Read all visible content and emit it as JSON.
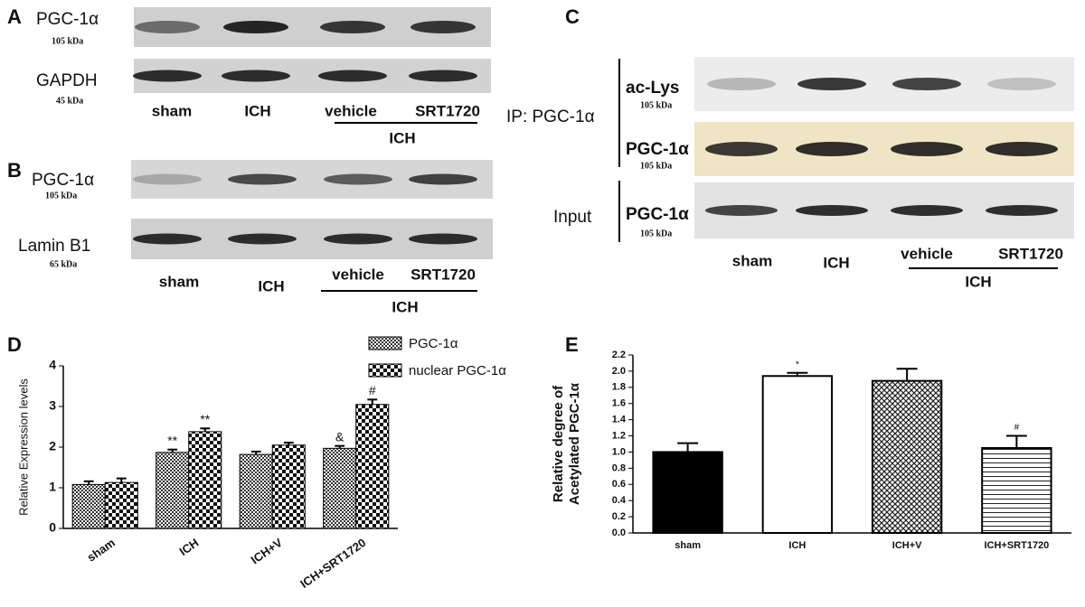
{
  "panel_a": {
    "label": "A",
    "rows": [
      {
        "protein": "PGC-1α",
        "size": "105 kDa"
      },
      {
        "protein": "GAPDH",
        "size": "45 kDa"
      }
    ],
    "lanes": [
      "sham",
      "ICH",
      "vehicle",
      "SRT1720"
    ],
    "group": "ICH"
  },
  "panel_b": {
    "label": "B",
    "rows": [
      {
        "protein": "PGC-1α",
        "size": "105 kDa"
      },
      {
        "protein": "Lamin B1",
        "size": "65 kDa"
      }
    ],
    "lanes": [
      "sham",
      "ICH",
      "vehicle",
      "SRT1720"
    ],
    "group": "ICH"
  },
  "panel_c": {
    "label": "C",
    "ip_label": "IP: PGC-1α",
    "input_label": "Input",
    "rows": [
      {
        "protein": "ac-Lys",
        "size": "105 kDa"
      },
      {
        "protein": "PGC-1α",
        "size": "105 kDa"
      },
      {
        "protein": "PGC-1α",
        "size": "105 kDa"
      }
    ],
    "lanes": [
      "sham",
      "ICH",
      "vehicle",
      "SRT1720"
    ],
    "group": "ICH"
  },
  "chart_data": [
    {
      "type": "bar",
      "panel": "D",
      "ylabel": "Relative Expression levels",
      "categories": [
        "sham",
        "ICH",
        "ICH+V",
        "ICH+SRT1720"
      ],
      "series": [
        {
          "name": "PGC-1α",
          "color": "#333333",
          "pattern": "checker-fine",
          "values": [
            1.08,
            1.87,
            1.82,
            1.97
          ],
          "errors": [
            0.08,
            0.07,
            0.07,
            0.06
          ],
          "significance": [
            null,
            "**",
            null,
            "&"
          ]
        },
        {
          "name": "nuclear PGC-1α",
          "color": "#111111",
          "pattern": "checker-coarse",
          "values": [
            1.13,
            2.38,
            2.05,
            3.05
          ],
          "errors": [
            0.1,
            0.08,
            0.06,
            0.12
          ],
          "significance": [
            null,
            "**",
            null,
            "#"
          ]
        }
      ],
      "ylim": [
        0,
        4
      ],
      "yticks": [
        0,
        1,
        2,
        3,
        4
      ]
    },
    {
      "type": "bar",
      "panel": "E",
      "ylabel": [
        "Relative degree of",
        "Acetylated PGC-1α"
      ],
      "categories": [
        "sham",
        "ICH",
        "ICH+V",
        "ICH+SRT1720"
      ],
      "series": [
        {
          "colors": [
            "#000000",
            "#ffffff",
            "#222222",
            "#222222"
          ],
          "patterns": [
            "solid",
            "solid",
            "crosshatch",
            "hlines"
          ],
          "values": [
            1.0,
            1.94,
            1.88,
            1.05
          ],
          "errors": [
            0.11,
            0.04,
            0.15,
            0.15
          ],
          "significance": [
            null,
            "*",
            null,
            "#"
          ]
        }
      ],
      "ylim": [
        0,
        2.2
      ],
      "yticks": [
        {
          "value": 0,
          "label": "0.0"
        },
        0.2,
        0.4,
        0.6,
        0.8,
        {
          "value": 1,
          "label": "1.0"
        },
        1.2,
        1.4,
        1.6,
        1.8,
        {
          "value": 2,
          "label": "2.0"
        },
        2.2
      ]
    }
  ]
}
